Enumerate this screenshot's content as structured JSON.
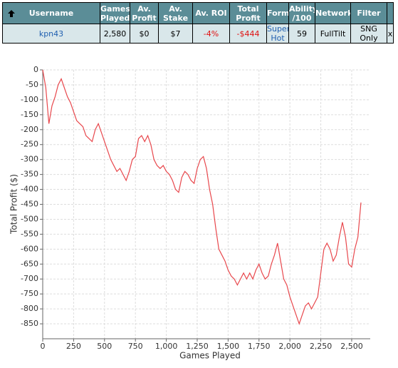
{
  "table": {
    "header": [
      "Username",
      "Games Played",
      "Av. Profit",
      "Av. Stake",
      "Av. ROI",
      "Total Profit",
      "Form",
      "Ability /100",
      "Network",
      "Filter"
    ],
    "rows": [
      [
        "kpn43",
        "2,580",
        "$0",
        "$7",
        "-4%",
        "-$444",
        "Super Hot",
        "59",
        "FullTilt",
        "SNG Only",
        "x"
      ]
    ]
  },
  "chart_data": {
    "type": "line",
    "x_label": "Games Played",
    "y_label": "Total Profit ($)",
    "color": "#e8474c",
    "grid": true,
    "xlim": [
      0,
      2650
    ],
    "ylim": [
      -900,
      0
    ],
    "xticks": [
      0,
      250,
      500,
      {
        "value": 750,
        "label": "750"
      },
      {
        "value": 1000,
        "label": "1,000"
      },
      {
        "value": 1250,
        "label": "1,250"
      },
      {
        "value": 1500,
        "label": "1,500"
      },
      {
        "value": 1750,
        "label": "1,750"
      },
      {
        "value": 2000,
        "label": "2,000"
      },
      {
        "value": 2250,
        "label": "2,250"
      },
      {
        "value": 2500,
        "label": "2,500"
      }
    ],
    "yticks": [
      0,
      -50,
      -100,
      -150,
      -200,
      -250,
      -300,
      -350,
      -400,
      -450,
      -500,
      -550,
      -600,
      -650,
      -700,
      -750,
      -800,
      -850
    ],
    "x": [
      0,
      25,
      50,
      75,
      100,
      125,
      150,
      175,
      200,
      225,
      250,
      275,
      300,
      325,
      350,
      375,
      400,
      425,
      450,
      475,
      500,
      525,
      550,
      575,
      600,
      625,
      650,
      675,
      700,
      725,
      750,
      775,
      800,
      825,
      850,
      875,
      900,
      925,
      950,
      975,
      1000,
      1025,
      1050,
      1075,
      1100,
      1125,
      1150,
      1175,
      1200,
      1225,
      1250,
      1275,
      1300,
      1325,
      1350,
      1375,
      1400,
      1425,
      1450,
      1475,
      1500,
      1525,
      1550,
      1575,
      1600,
      1625,
      1650,
      1675,
      1700,
      1725,
      1750,
      1775,
      1800,
      1825,
      1850,
      1875,
      1900,
      1925,
      1950,
      1975,
      2000,
      2025,
      2050,
      2075,
      2100,
      2125,
      2150,
      2175,
      2200,
      2225,
      2250,
      2275,
      2300,
      2325,
      2350,
      2375,
      2400,
      2425,
      2450,
      2475,
      2500,
      2525,
      2550,
      2575
    ],
    "values": [
      0,
      -60,
      -180,
      -120,
      -90,
      -50,
      -30,
      -60,
      -90,
      -110,
      -140,
      -170,
      -180,
      -190,
      -220,
      -230,
      -240,
      -200,
      -180,
      -210,
      -240,
      -270,
      -300,
      -320,
      -340,
      -330,
      -350,
      -370,
      -340,
      -300,
      -290,
      -230,
      -220,
      -240,
      -220,
      -250,
      -300,
      -320,
      -330,
      -320,
      -340,
      -350,
      -370,
      -400,
      -410,
      -360,
      -340,
      -350,
      -370,
      -380,
      -330,
      -300,
      -290,
      -330,
      -400,
      -450,
      -530,
      -600,
      -620,
      -640,
      -670,
      -690,
      -700,
      -720,
      -700,
      -680,
      -700,
      -680,
      -700,
      -670,
      -650,
      -680,
      -700,
      -690,
      -650,
      -620,
      -580,
      -640,
      -700,
      -720,
      -760,
      -790,
      -820,
      -850,
      -820,
      -790,
      -780,
      -800,
      -780,
      -760,
      -680,
      -600,
      -580,
      -600,
      -640,
      -620,
      -560,
      -510,
      -560,
      -650,
      -660,
      -600,
      -560,
      -444
    ]
  }
}
